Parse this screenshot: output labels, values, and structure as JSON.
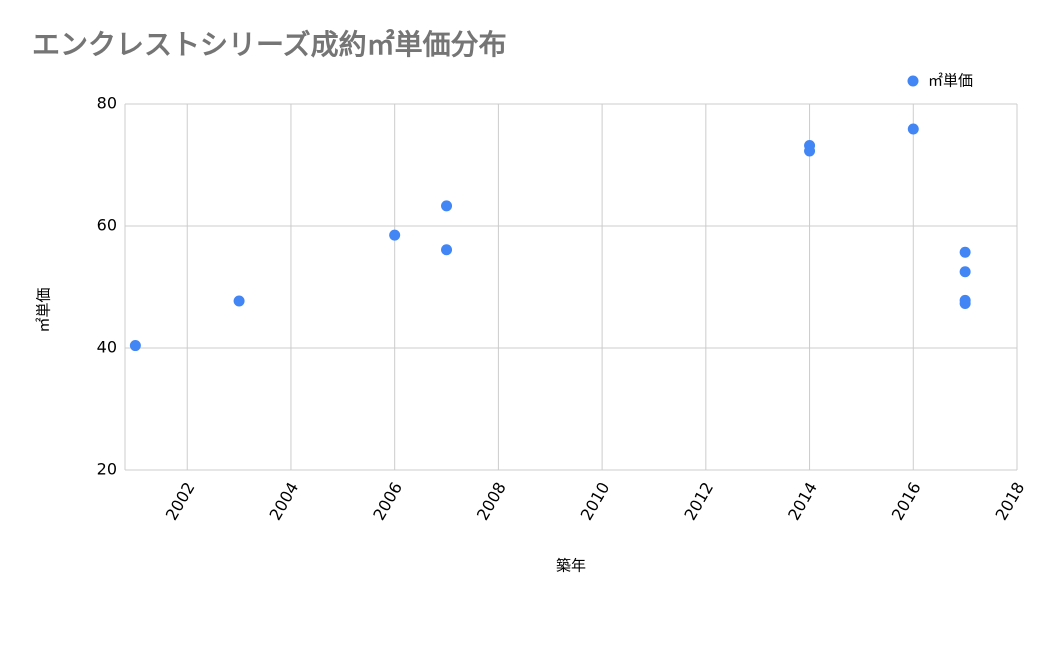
{
  "chart_data": {
    "type": "scatter",
    "title": "エンクレストシリーズ成約㎡単価分布",
    "x_label": "築年",
    "y_label": "㎡単価",
    "series": [
      {
        "name": "㎡単価",
        "color": "#4285f4",
        "x": [
          2001,
          2003,
          2006,
          2007,
          2007,
          2014,
          2014,
          2016,
          2017,
          2017,
          2017,
          2017
        ],
        "values": [
          40.4,
          47.7,
          58.5,
          63.3,
          56.1,
          73.2,
          72.3,
          75.9,
          55.7,
          52.5,
          47.8,
          47.3
        ]
      }
    ],
    "xlim": [
      2000.8,
      2018
    ],
    "xticks": [
      2002,
      2004,
      2006,
      2008,
      2010,
      2012,
      2014,
      2016,
      2018
    ],
    "ylim": [
      20,
      80
    ],
    "yticks": [
      20,
      40,
      60,
      80
    ],
    "grid": true,
    "legend": "top-right"
  }
}
